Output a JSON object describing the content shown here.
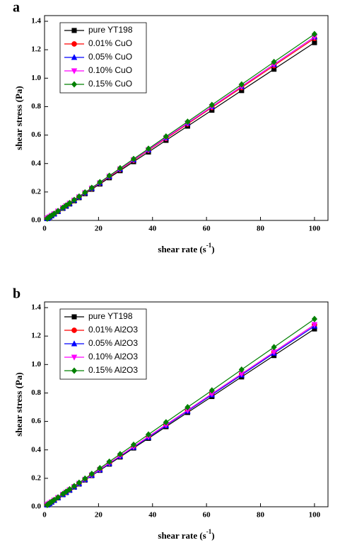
{
  "chart_data": [
    {
      "type": "line",
      "panel_label": "a",
      "ylabel": "shear stress (Pa)",
      "xlabel": {
        "text": "shear rate (s",
        "sup": "-1",
        "end": ")"
      },
      "xlim": [
        0,
        105
      ],
      "ylim": [
        0,
        1.44
      ],
      "xticks": [
        0,
        20,
        40,
        60,
        80,
        100
      ],
      "yticks": [
        {
          "value": 0,
          "label": "0.0"
        },
        {
          "value": 0.2,
          "label": "0.2"
        },
        {
          "value": 0.4,
          "label": "0.4"
        },
        {
          "value": 0.6,
          "label": "0.6"
        },
        {
          "value": 0.8,
          "label": "0.8"
        },
        {
          "value": 1.0,
          "label": "1.0"
        },
        {
          "value": 1.2,
          "label": "1.2"
        },
        {
          "value": 1.4,
          "label": "1.4"
        }
      ],
      "legend": "upper-left",
      "x": [
        1,
        1.4,
        1.9,
        2.6,
        3.6,
        5,
        6.8,
        8,
        9.3,
        11,
        12.8,
        15,
        17.5,
        20.5,
        24,
        28,
        33,
        38.5,
        45,
        53,
        62,
        73,
        85,
        100
      ],
      "series": [
        {
          "name": "pure YT198",
          "color": "#000000",
          "marker": "square",
          "values": [
            0.013,
            0.018,
            0.024,
            0.033,
            0.045,
            0.063,
            0.085,
            0.1,
            0.116,
            0.138,
            0.16,
            0.188,
            0.219,
            0.256,
            0.3,
            0.35,
            0.413,
            0.481,
            0.563,
            0.663,
            0.775,
            0.913,
            1.063,
            1.25
          ]
        },
        {
          "name": "0.01% CuO",
          "color": "#ff0000",
          "marker": "circle",
          "values": [
            0.013,
            0.018,
            0.024,
            0.033,
            0.046,
            0.064,
            0.087,
            0.102,
            0.119,
            0.141,
            0.164,
            0.192,
            0.224,
            0.262,
            0.307,
            0.358,
            0.422,
            0.493,
            0.576,
            0.678,
            0.794,
            0.934,
            1.088,
            1.28
          ]
        },
        {
          "name": "0.05% CuO",
          "color": "#0000ff",
          "marker": "triangle-up",
          "values": [
            0.013,
            0.018,
            0.025,
            0.034,
            0.046,
            0.065,
            0.088,
            0.103,
            0.12,
            0.142,
            0.165,
            0.194,
            0.226,
            0.264,
            0.31,
            0.361,
            0.426,
            0.497,
            0.581,
            0.684,
            0.8,
            0.942,
            1.097,
            1.29
          ]
        },
        {
          "name": "0.10% CuO",
          "color": "#ff00ff",
          "marker": "triangle-down",
          "values": [
            0.013,
            0.018,
            0.025,
            0.034,
            0.046,
            0.065,
            0.088,
            0.103,
            0.12,
            0.142,
            0.165,
            0.194,
            0.226,
            0.264,
            0.31,
            0.361,
            0.426,
            0.497,
            0.581,
            0.684,
            0.8,
            0.942,
            1.097,
            1.29
          ]
        },
        {
          "name": "0.15% CuO",
          "color": "#008000",
          "marker": "diamond",
          "values": [
            0.013,
            0.018,
            0.025,
            0.034,
            0.047,
            0.066,
            0.089,
            0.105,
            0.122,
            0.144,
            0.168,
            0.197,
            0.229,
            0.269,
            0.314,
            0.367,
            0.432,
            0.504,
            0.59,
            0.694,
            0.812,
            0.956,
            1.114,
            1.31
          ]
        }
      ]
    },
    {
      "type": "line",
      "panel_label": "b",
      "ylabel": "shear stress (Pa)",
      "xlabel": {
        "text": "shear rate (s",
        "sup": "-1",
        "end": ")"
      },
      "xlim": [
        0,
        105
      ],
      "ylim": [
        0,
        1.44
      ],
      "xticks": [
        0,
        20,
        40,
        60,
        80,
        100
      ],
      "yticks": [
        {
          "value": 0,
          "label": "0.0"
        },
        {
          "value": 0.2,
          "label": "0.2"
        },
        {
          "value": 0.4,
          "label": "0.4"
        },
        {
          "value": 0.6,
          "label": "0.6"
        },
        {
          "value": 0.8,
          "label": "0.8"
        },
        {
          "value": 1.0,
          "label": "1.0"
        },
        {
          "value": 1.2,
          "label": "1.2"
        },
        {
          "value": 1.4,
          "label": "1.4"
        }
      ],
      "legend": "upper-left",
      "x": [
        1,
        1.4,
        1.9,
        2.6,
        3.6,
        5,
        6.8,
        8,
        9.3,
        11,
        12.8,
        15,
        17.5,
        20.5,
        24,
        28,
        33,
        38.5,
        45,
        53,
        62,
        73,
        85,
        100
      ],
      "series": [
        {
          "name": "pure YT198",
          "color": "#000000",
          "marker": "square",
          "values": [
            0.013,
            0.018,
            0.024,
            0.033,
            0.045,
            0.063,
            0.085,
            0.1,
            0.116,
            0.138,
            0.16,
            0.188,
            0.219,
            0.256,
            0.3,
            0.35,
            0.413,
            0.481,
            0.563,
            0.663,
            0.775,
            0.913,
            1.063,
            1.25
          ]
        },
        {
          "name": "0.01% Al2O3",
          "color": "#ff0000",
          "marker": "circle",
          "values": [
            0.013,
            0.018,
            0.024,
            0.033,
            0.046,
            0.064,
            0.087,
            0.102,
            0.119,
            0.141,
            0.164,
            0.192,
            0.224,
            0.262,
            0.307,
            0.358,
            0.422,
            0.493,
            0.576,
            0.678,
            0.794,
            0.934,
            1.088,
            1.28
          ]
        },
        {
          "name": "0.05% Al2O3",
          "color": "#0000ff",
          "marker": "triangle-up",
          "values": [
            0.013,
            0.018,
            0.024,
            0.033,
            0.046,
            0.064,
            0.086,
            0.102,
            0.118,
            0.14,
            0.163,
            0.191,
            0.222,
            0.26,
            0.305,
            0.356,
            0.419,
            0.489,
            0.572,
            0.673,
            0.787,
            0.927,
            1.08,
            1.27
          ]
        },
        {
          "name": "0.10% Al2O3",
          "color": "#ff00ff",
          "marker": "triangle-down",
          "values": [
            0.013,
            0.018,
            0.024,
            0.033,
            0.046,
            0.064,
            0.087,
            0.102,
            0.119,
            0.141,
            0.164,
            0.192,
            0.224,
            0.262,
            0.307,
            0.358,
            0.422,
            0.493,
            0.576,
            0.678,
            0.794,
            0.934,
            1.088,
            1.28
          ]
        },
        {
          "name": "0.15% Al2O3",
          "color": "#008000",
          "marker": "diamond",
          "values": [
            0.013,
            0.018,
            0.025,
            0.034,
            0.048,
            0.066,
            0.09,
            0.106,
            0.123,
            0.145,
            0.169,
            0.198,
            0.231,
            0.271,
            0.317,
            0.37,
            0.436,
            0.508,
            0.594,
            0.7,
            0.818,
            0.964,
            1.122,
            1.32
          ]
        }
      ]
    }
  ]
}
